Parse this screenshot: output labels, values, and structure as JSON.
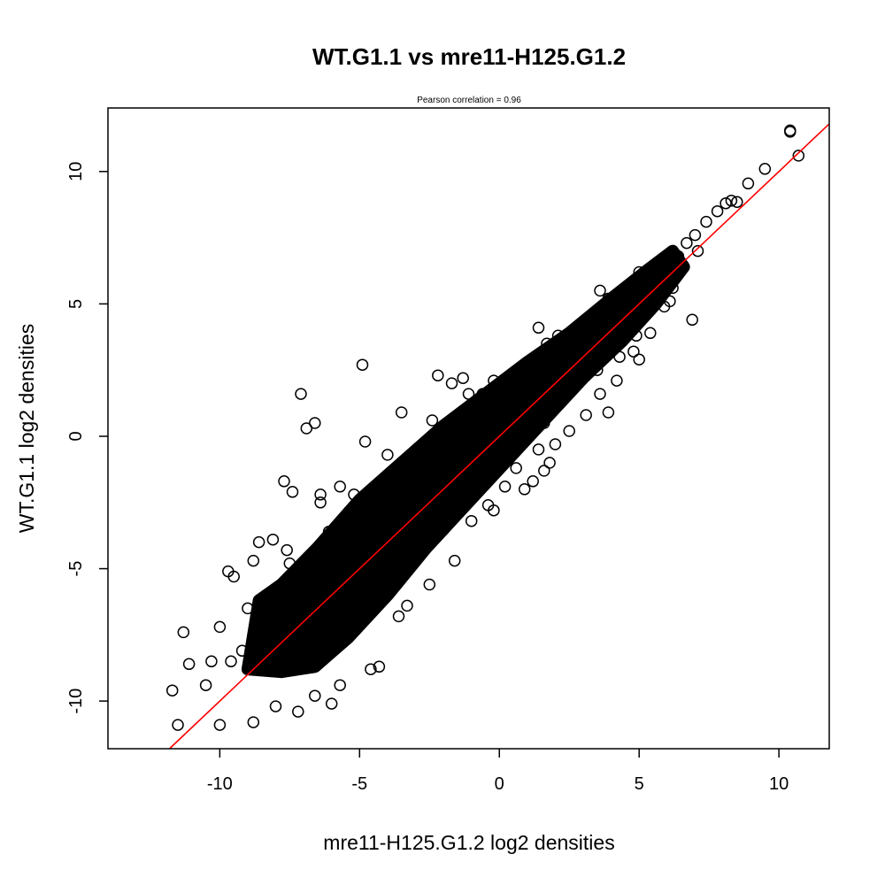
{
  "chart_data": {
    "type": "scatter",
    "title": "WT.G1.1 vs mre11-H125.G1.2",
    "subtitle": "Pearson correlation =  0.96",
    "xlabel": "mre11-H125.G1.2 log2 densities",
    "ylabel": "WT.G1.1 log2 densities",
    "xlim": [
      -14,
      11.8
    ],
    "ylim": [
      -11.8,
      12.4
    ],
    "x_ticks": [
      -10,
      -5,
      0,
      5,
      10
    ],
    "y_ticks": [
      -10,
      -5,
      0,
      5,
      10
    ],
    "x_tick_labels": [
      "-10",
      "-5",
      "0",
      "5",
      "10"
    ],
    "y_tick_labels": [
      "-10",
      "-5",
      "0",
      "5",
      "10"
    ],
    "grid": false,
    "point_style": "open-circle",
    "point_color": "#000000",
    "fit_line": {
      "color": "#ff0000",
      "intercept": 0.0,
      "slope": 1.0
    },
    "correlation": 0.96,
    "series": [
      {
        "points": [
          [
            10.4,
            11.5
          ],
          [
            10.4,
            11.55
          ],
          [
            10.7,
            10.6
          ],
          [
            9.5,
            10.1
          ],
          [
            8.9,
            9.55
          ],
          [
            8.5,
            8.85
          ],
          [
            8.3,
            8.9
          ],
          [
            8.1,
            8.8
          ],
          [
            7.8,
            8.5
          ],
          [
            7.4,
            8.1
          ],
          [
            7.0,
            7.6
          ],
          [
            6.9,
            4.4
          ],
          [
            7.1,
            7.0
          ],
          [
            6.7,
            7.3
          ],
          [
            6.4,
            6.8
          ],
          [
            6.0,
            6.4
          ],
          [
            5.8,
            5.9
          ],
          [
            5.5,
            6.1
          ],
          [
            5.9,
            4.9
          ],
          [
            6.2,
            5.6
          ],
          [
            5.1,
            5.4
          ],
          [
            5.0,
            6.2
          ],
          [
            4.7,
            4.2
          ],
          [
            4.4,
            4.6
          ],
          [
            4.9,
            3.8
          ],
          [
            4.3,
            3.0
          ],
          [
            5.0,
            2.9
          ],
          [
            3.7,
            3.3
          ],
          [
            3.9,
            5.2
          ],
          [
            3.6,
            5.5
          ],
          [
            3.5,
            2.5
          ],
          [
            3.9,
            0.9
          ],
          [
            3.6,
            1.6
          ],
          [
            2.9,
            3.0
          ],
          [
            3.1,
            2.4
          ],
          [
            2.7,
            3.2
          ],
          [
            2.5,
            1.9
          ],
          [
            1.7,
            3.5
          ],
          [
            2.1,
            3.8
          ],
          [
            1.4,
            4.1
          ],
          [
            1.6,
            0.5
          ],
          [
            2.0,
            -0.3
          ],
          [
            1.7,
            0.9
          ],
          [
            1.6,
            -1.3
          ],
          [
            1.4,
            -0.5
          ],
          [
            0.9,
            1.9
          ],
          [
            0.9,
            0.0
          ],
          [
            0.8,
            0.7
          ],
          [
            1.2,
            -1.7
          ],
          [
            0.6,
            -1.2
          ],
          [
            0.0,
            1.4
          ],
          [
            0.3,
            0.3
          ],
          [
            -0.2,
            2.1
          ],
          [
            0.0,
            -0.7
          ],
          [
            -0.6,
            1.6
          ],
          [
            -0.3,
            -1.2
          ],
          [
            -0.4,
            -2.6
          ],
          [
            -0.9,
            0.5
          ],
          [
            -1.1,
            1.6
          ],
          [
            -1.2,
            -0.6
          ],
          [
            -1.7,
            2.0
          ],
          [
            -1.3,
            2.2
          ],
          [
            -1.8,
            0.1
          ],
          [
            -2.0,
            -1.9
          ],
          [
            -2.2,
            2.3
          ],
          [
            -2.4,
            0.6
          ],
          [
            -2.3,
            -2.6
          ],
          [
            -2.7,
            -0.9
          ],
          [
            -3.1,
            -3.4
          ],
          [
            -3.5,
            0.9
          ],
          [
            -3.5,
            -2.4
          ],
          [
            -4.0,
            -0.7
          ],
          [
            -4.0,
            -2.2
          ],
          [
            -4.3,
            -3.0
          ],
          [
            -4.8,
            -0.2
          ],
          [
            -4.9,
            2.7
          ],
          [
            -5.0,
            -5.1
          ],
          [
            -5.2,
            -2.2
          ],
          [
            -5.5,
            -4.3
          ],
          [
            -5.7,
            -1.9
          ],
          [
            -5.8,
            -6.0
          ],
          [
            -6.1,
            -3.6
          ],
          [
            -6.4,
            -2.2
          ],
          [
            -6.4,
            -2.5
          ],
          [
            -6.9,
            0.3
          ],
          [
            -6.6,
            0.5
          ],
          [
            -6.9,
            -6.9
          ],
          [
            -7.1,
            1.6
          ],
          [
            -7.4,
            -2.1
          ],
          [
            -7.5,
            -4.8
          ],
          [
            -7.7,
            -1.7
          ],
          [
            -7.9,
            -5.7
          ],
          [
            -8.1,
            -3.9
          ],
          [
            -8.4,
            -7.4
          ],
          [
            -8.6,
            -4.0
          ],
          [
            -8.8,
            -4.7
          ],
          [
            -9.0,
            -6.5
          ],
          [
            -9.5,
            -5.3
          ],
          [
            -9.7,
            -5.1
          ],
          [
            -10.0,
            -7.2
          ],
          [
            -10.3,
            -8.5
          ],
          [
            -10.5,
            -9.4
          ],
          [
            -11.1,
            -8.6
          ],
          [
            -11.3,
            -7.4
          ],
          [
            -11.7,
            -9.6
          ],
          [
            -11.5,
            -10.9
          ],
          [
            -10.0,
            -10.9
          ],
          [
            -8.8,
            -10.8
          ],
          [
            -8.0,
            -10.2
          ],
          [
            -7.2,
            -10.4
          ],
          [
            -6.6,
            -9.8
          ],
          [
            -6.0,
            -10.1
          ],
          [
            -5.7,
            -9.4
          ],
          [
            -4.6,
            -8.8
          ],
          [
            -4.3,
            -8.7
          ],
          [
            -3.6,
            -6.8
          ],
          [
            -3.3,
            -6.4
          ],
          [
            -2.5,
            -5.6
          ],
          [
            -1.6,
            -4.7
          ],
          [
            -1.0,
            -3.2
          ],
          [
            -0.2,
            -2.8
          ],
          [
            0.2,
            -1.9
          ],
          [
            0.9,
            -2.0
          ],
          [
            1.8,
            -1.0
          ],
          [
            2.5,
            0.2
          ],
          [
            3.1,
            0.8
          ],
          [
            4.2,
            2.1
          ],
          [
            4.8,
            3.2
          ],
          [
            5.4,
            3.9
          ],
          [
            6.1,
            5.1
          ],
          [
            -9.2,
            -8.1
          ],
          [
            -8.2,
            -6.0
          ],
          [
            -9.6,
            -8.5
          ],
          [
            -7.6,
            -4.3
          ],
          [
            -6.8,
            -6.2
          ]
        ]
      }
    ]
  }
}
